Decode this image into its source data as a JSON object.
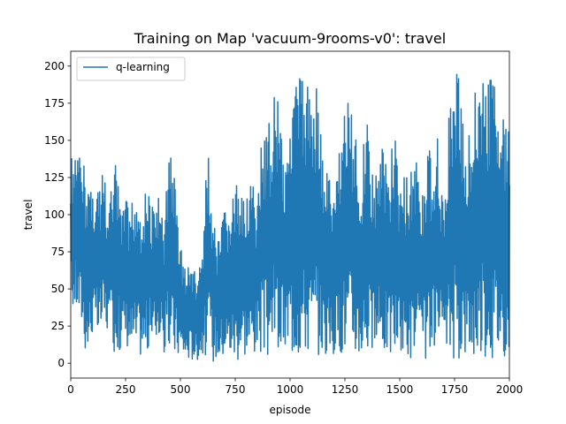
{
  "chart_data": {
    "type": "line",
    "title": "Training on Map 'vacuum-9rooms-v0': travel",
    "xlabel": "episode",
    "ylabel": "travel",
    "xlim": [
      0,
      2000
    ],
    "ylim": [
      -10,
      210
    ],
    "xticks": [
      0,
      250,
      500,
      750,
      1000,
      1250,
      1500,
      1750,
      2000
    ],
    "yticks": [
      0,
      25,
      50,
      75,
      100,
      125,
      150,
      175,
      200
    ],
    "grid": false,
    "legend": {
      "placement": "top-left",
      "entries": [
        "q-learning"
      ]
    },
    "series": [
      {
        "name": "q-learning",
        "color": "#1f77b4",
        "x": [
          0,
          25,
          50,
          75,
          100,
          125,
          150,
          175,
          200,
          225,
          250,
          275,
          300,
          325,
          350,
          375,
          400,
          425,
          450,
          475,
          500,
          525,
          550,
          575,
          600,
          625,
          650,
          675,
          700,
          725,
          750,
          775,
          800,
          825,
          850,
          875,
          900,
          925,
          950,
          975,
          1000,
          1025,
          1050,
          1075,
          1100,
          1125,
          1150,
          1175,
          1200,
          1225,
          1250,
          1275,
          1300,
          1325,
          1350,
          1375,
          1400,
          1425,
          1450,
          1475,
          1500,
          1525,
          1550,
          1575,
          1600,
          1625,
          1650,
          1675,
          1700,
          1725,
          1750,
          1775,
          1800,
          1825,
          1850,
          1875,
          1900,
          1925,
          1950,
          1975,
          2000
        ],
        "y_max": [
          140,
          141,
          138,
          134,
          118,
          121,
          130,
          105,
          137,
          116,
          110,
          108,
          119,
          103,
          121,
          108,
          112,
          90,
          155,
          122,
          81,
          61,
          70,
          55,
          81,
          149,
          105,
          81,
          103,
          103,
          119,
          130,
          120,
          125,
          108,
          165,
          160,
          183,
          189,
          130,
          193,
          192,
          193,
          187,
          186,
          188,
          135,
          130,
          110,
          151,
          175,
          180,
          155,
          118,
          190,
          130,
          127,
          160,
          125,
          160,
          121,
          128,
          130,
          140,
          115,
          147,
          140,
          165,
          100,
          170,
          196,
          195,
          155,
          160,
          196,
          197,
          193,
          196,
          196,
          161,
          160
        ],
        "y_min": [
          35,
          35,
          24,
          0,
          20,
          14,
          23,
          19,
          7,
          8,
          13,
          7,
          6,
          5,
          6,
          11,
          18,
          6,
          4,
          3,
          4,
          2,
          2,
          2,
          6,
          2,
          1,
          2,
          4,
          4,
          0,
          4,
          5,
          4,
          9,
          4,
          2,
          8,
          2,
          6,
          4,
          5,
          3,
          6,
          3,
          5,
          7,
          2,
          4,
          7,
          5,
          7,
          4,
          5,
          4,
          5,
          9,
          6,
          5,
          4,
          5,
          4,
          3,
          4,
          3,
          2,
          4,
          5,
          4,
          3,
          1,
          3,
          5,
          4,
          2,
          3,
          4,
          3,
          4,
          5,
          4
        ]
      }
    ]
  }
}
